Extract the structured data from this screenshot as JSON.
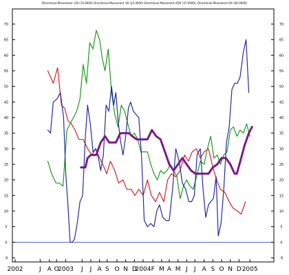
{
  "chart_data": {
    "type": "line",
    "title": "Directional Movement +DI (14.0000) Directional Movement -DI (12.0000) Directional Movement ADX (37.0000), Directional Movement DX (40.0000)",
    "xlabel": "",
    "ylabel": "",
    "ylim": [
      -5,
      75
    ],
    "xlim": [
      0,
      48
    ],
    "grid": "none",
    "baseline": {
      "value": 0,
      "color": "#4f5fd0"
    },
    "y_ticks": [
      "-5",
      "0",
      "5",
      "10",
      "15",
      "20",
      "25",
      "30",
      "35",
      "40",
      "45",
      "50",
      "55",
      "60",
      "65",
      "70"
    ],
    "y_tick_values": [
      -5,
      0,
      5,
      10,
      15,
      20,
      25,
      30,
      35,
      40,
      45,
      50,
      55,
      60,
      65,
      70
    ],
    "x_ticks": [
      {
        "x": 0.5,
        "label": "2002"
      },
      {
        "x": 5.1,
        "label": "J"
      },
      {
        "x": 6.8,
        "label": "A"
      },
      {
        "x": 8.1,
        "label": "O"
      },
      {
        "x": 9.8,
        "label": "2003"
      },
      {
        "x": 12.8,
        "label": "J"
      },
      {
        "x": 14.4,
        "label": "J"
      },
      {
        "x": 16.0,
        "label": "A"
      },
      {
        "x": 17.4,
        "label": "S"
      },
      {
        "x": 19.2,
        "label": "O"
      },
      {
        "x": 20.8,
        "label": "N"
      },
      {
        "x": 22.4,
        "label": "D"
      },
      {
        "x": 24.0,
        "label": "2004"
      },
      {
        "x": 25.8,
        "label": "F"
      },
      {
        "x": 27.4,
        "label": "M"
      },
      {
        "x": 28.8,
        "label": "A"
      },
      {
        "x": 30.4,
        "label": "M"
      },
      {
        "x": 32.0,
        "label": "J"
      },
      {
        "x": 33.5,
        "label": "J"
      },
      {
        "x": 35.2,
        "label": "A"
      },
      {
        "x": 36.8,
        "label": "S"
      },
      {
        "x": 38.4,
        "label": "O"
      },
      {
        "x": 40.0,
        "label": "N"
      },
      {
        "x": 41.6,
        "label": "D"
      },
      {
        "x": 43.6,
        "label": "2005"
      }
    ],
    "series": [
      {
        "color": "#d62020",
        "points": [
          [
            6.5,
            55
          ],
          [
            7.5,
            51
          ],
          [
            8.3,
            56
          ],
          [
            9.0,
            44
          ],
          [
            9.6,
            43
          ],
          [
            10.2,
            39
          ],
          [
            10.8,
            38
          ],
          [
            11.5,
            36
          ],
          [
            12.2,
            33
          ],
          [
            13.0,
            33
          ],
          [
            13.8,
            30
          ],
          [
            14.6,
            28
          ],
          [
            15.3,
            30
          ],
          [
            16.0,
            27
          ],
          [
            16.6,
            25
          ],
          [
            17.3,
            22
          ],
          [
            18.0,
            26
          ],
          [
            18.8,
            23
          ],
          [
            19.5,
            19
          ],
          [
            20.3,
            20
          ],
          [
            21.0,
            17
          ],
          [
            21.8,
            17
          ],
          [
            22.5,
            15
          ],
          [
            23.2,
            17
          ],
          [
            24.0,
            15
          ],
          [
            24.8,
            20
          ],
          [
            25.5,
            15
          ],
          [
            26.3,
            13
          ],
          [
            27.0,
            16
          ],
          [
            27.8,
            13
          ],
          [
            28.5,
            20
          ],
          [
            29.2,
            22
          ],
          [
            30.0,
            21
          ],
          [
            30.8,
            23
          ],
          [
            31.6,
            28
          ],
          [
            32.3,
            26
          ],
          [
            33.0,
            29
          ],
          [
            33.8,
            30
          ],
          [
            34.5,
            27
          ],
          [
            35.2,
            29
          ],
          [
            36.0,
            30
          ],
          [
            36.8,
            24
          ],
          [
            37.5,
            20
          ],
          [
            38.2,
            17
          ],
          [
            39.0,
            16
          ],
          [
            39.8,
            13
          ],
          [
            40.5,
            11
          ],
          [
            41.3,
            10
          ],
          [
            42.0,
            9
          ],
          [
            42.8,
            13
          ]
        ]
      },
      {
        "color": "#1a9a1a",
        "points": [
          [
            6.5,
            26
          ],
          [
            7.2,
            22
          ],
          [
            8.0,
            19
          ],
          [
            8.6,
            19
          ],
          [
            9.3,
            18
          ],
          [
            10.0,
            36
          ],
          [
            10.6,
            38
          ],
          [
            11.2,
            40
          ],
          [
            11.8,
            42
          ],
          [
            12.4,
            46
          ],
          [
            13.0,
            57
          ],
          [
            13.6,
            51
          ],
          [
            14.2,
            64
          ],
          [
            14.8,
            62
          ],
          [
            15.4,
            68
          ],
          [
            16.0,
            65
          ],
          [
            16.5,
            59
          ],
          [
            17.0,
            55
          ],
          [
            17.6,
            62
          ],
          [
            18.2,
            48
          ],
          [
            18.8,
            41
          ],
          [
            19.4,
            37
          ],
          [
            20.0,
            44
          ],
          [
            20.6,
            42
          ],
          [
            21.2,
            38
          ],
          [
            21.8,
            34
          ],
          [
            22.4,
            35
          ],
          [
            23.0,
            33
          ],
          [
            23.6,
            29
          ],
          [
            24.2,
            29
          ],
          [
            24.8,
            29
          ],
          [
            25.4,
            25
          ],
          [
            26.0,
            22
          ],
          [
            26.6,
            20
          ],
          [
            27.2,
            23
          ],
          [
            27.8,
            22
          ],
          [
            28.4,
            23
          ],
          [
            29.0,
            25
          ],
          [
            29.6,
            23
          ],
          [
            30.2,
            21
          ],
          [
            30.8,
            14
          ],
          [
            31.4,
            18
          ],
          [
            32.0,
            20
          ],
          [
            32.6,
            18
          ],
          [
            33.2,
            17
          ],
          [
            33.8,
            21
          ],
          [
            34.5,
            26
          ],
          [
            35.2,
            25
          ],
          [
            35.8,
            30
          ],
          [
            36.4,
            34
          ],
          [
            37.0,
            27
          ],
          [
            37.6,
            28
          ],
          [
            38.2,
            25
          ],
          [
            38.8,
            28
          ],
          [
            39.4,
            29
          ],
          [
            40.0,
            36
          ],
          [
            40.6,
            37
          ],
          [
            41.2,
            34
          ],
          [
            41.8,
            36
          ],
          [
            42.4,
            35
          ],
          [
            43.0,
            38
          ],
          [
            43.6,
            34
          ]
        ]
      },
      {
        "color": "#202aa0",
        "points": [
          [
            6.5,
            36
          ],
          [
            7.0,
            35
          ],
          [
            7.5,
            45
          ],
          [
            8.2,
            46
          ],
          [
            8.8,
            48
          ],
          [
            9.4,
            40
          ],
          [
            9.8,
            22
          ],
          [
            10.2,
            12
          ],
          [
            10.6,
            0
          ],
          [
            11.0,
            0
          ],
          [
            11.4,
            1
          ],
          [
            11.9,
            6
          ],
          [
            12.4,
            13
          ],
          [
            12.9,
            15
          ],
          [
            13.4,
            34
          ],
          [
            13.8,
            44
          ],
          [
            14.3,
            38
          ],
          [
            14.8,
            29
          ],
          [
            15.3,
            30
          ],
          [
            15.8,
            27
          ],
          [
            16.2,
            23
          ],
          [
            16.7,
            28
          ],
          [
            17.2,
            44
          ],
          [
            17.7,
            42
          ],
          [
            18.2,
            50
          ],
          [
            18.6,
            44
          ],
          [
            19.0,
            48
          ],
          [
            19.4,
            39
          ],
          [
            19.8,
            33
          ],
          [
            20.3,
            28
          ],
          [
            20.8,
            34
          ],
          [
            21.3,
            43
          ],
          [
            21.7,
            45
          ],
          [
            22.2,
            42
          ],
          [
            22.7,
            41
          ],
          [
            23.2,
            40
          ],
          [
            23.7,
            28
          ],
          [
            24.2,
            7
          ],
          [
            24.8,
            5
          ],
          [
            25.4,
            6
          ],
          [
            26.0,
            5
          ],
          [
            26.5,
            10
          ],
          [
            27.0,
            12
          ],
          [
            27.6,
            8
          ],
          [
            28.2,
            7
          ],
          [
            28.8,
            7
          ],
          [
            29.4,
            17
          ],
          [
            30.0,
            30
          ],
          [
            30.6,
            26
          ],
          [
            31.2,
            19
          ],
          [
            31.8,
            17
          ],
          [
            32.4,
            13
          ],
          [
            32.9,
            13
          ],
          [
            33.4,
            15
          ],
          [
            33.9,
            28
          ],
          [
            34.5,
            30
          ],
          [
            35.0,
            17
          ],
          [
            35.5,
            8
          ],
          [
            36.0,
            12
          ],
          [
            36.4,
            13
          ],
          [
            36.9,
            14
          ],
          [
            37.4,
            21
          ],
          [
            37.8,
            2
          ],
          [
            38.3,
            6
          ],
          [
            38.8,
            17
          ],
          [
            39.3,
            32
          ],
          [
            39.8,
            37
          ],
          [
            40.3,
            49
          ],
          [
            40.8,
            51
          ],
          [
            41.3,
            51
          ],
          [
            41.8,
            53
          ],
          [
            42.4,
            61
          ],
          [
            42.9,
            65
          ],
          [
            43.4,
            48
          ]
        ]
      },
      {
        "color": "#7a1a8a",
        "points": [
          [
            12.6,
            24
          ],
          [
            13.4,
            24
          ],
          [
            13.8,
            27
          ],
          [
            14.4,
            28
          ],
          [
            15.4,
            28
          ],
          [
            16.2,
            32
          ],
          [
            17.0,
            34
          ],
          [
            17.8,
            32
          ],
          [
            18.4,
            32
          ],
          [
            19.0,
            32
          ],
          [
            19.8,
            35
          ],
          [
            20.6,
            35
          ],
          [
            21.4,
            35
          ],
          [
            22.0,
            34
          ],
          [
            22.8,
            33
          ],
          [
            23.6,
            33
          ],
          [
            24.2,
            33
          ],
          [
            24.8,
            33
          ],
          [
            25.6,
            36
          ],
          [
            26.4,
            34
          ],
          [
            27.2,
            33
          ],
          [
            28.0,
            29
          ],
          [
            28.8,
            25
          ],
          [
            29.6,
            23
          ],
          [
            30.4,
            25
          ],
          [
            31.2,
            27
          ],
          [
            32.0,
            25
          ],
          [
            32.8,
            23
          ],
          [
            33.6,
            22
          ],
          [
            34.4,
            22
          ],
          [
            35.2,
            22
          ],
          [
            36.0,
            22
          ],
          [
            36.8,
            24
          ],
          [
            37.6,
            25
          ],
          [
            38.4,
            27
          ],
          [
            39.2,
            27
          ],
          [
            40.0,
            25
          ],
          [
            40.8,
            22
          ],
          [
            41.2,
            22
          ],
          [
            42.0,
            27
          ],
          [
            42.6,
            31
          ],
          [
            43.4,
            35
          ],
          [
            44.0,
            37
          ]
        ]
      }
    ]
  }
}
